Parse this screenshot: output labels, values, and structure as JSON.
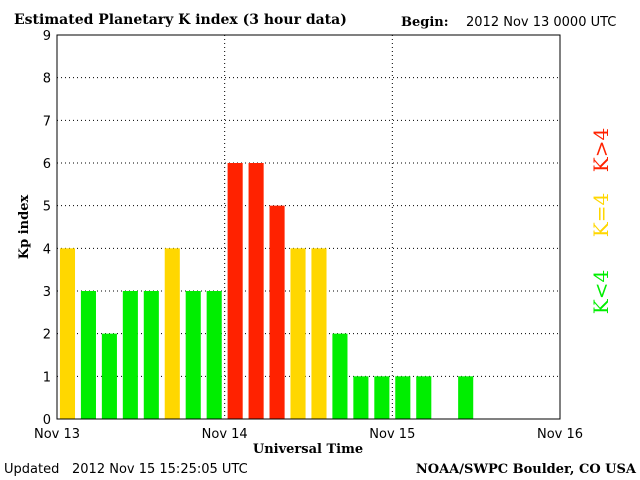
{
  "header": {
    "title": "Estimated Planetary K index (3 hour data)",
    "begin_label": "Begin:",
    "begin_value": "2012 Nov 13 0000 UTC"
  },
  "footer": {
    "updated_label": "Updated",
    "updated_value": "2012 Nov 15 15:25:05 UTC",
    "source": "NOAA/SWPC Boulder, CO USA"
  },
  "legend": [
    {
      "label": "K<4",
      "color": "#00ee00"
    },
    {
      "label": "K=4",
      "color": "#ffd700"
    },
    {
      "label": "K>4",
      "color": "#ff2200"
    }
  ],
  "colors": {
    "quiet": "#00ee00",
    "active": "#ffd700",
    "storm": "#ff2200"
  },
  "chart_data": {
    "type": "bar",
    "xlabel": "Universal Time",
    "ylabel": "Kp index",
    "ylim": [
      0,
      9
    ],
    "yticks": [
      0,
      1,
      2,
      3,
      4,
      5,
      6,
      7,
      8,
      9
    ],
    "xticks": [
      "Nov 13",
      "Nov 14",
      "Nov 15",
      "Nov 16"
    ],
    "grid": true,
    "categories": [
      "Nov 13 00-03",
      "Nov 13 03-06",
      "Nov 13 06-09",
      "Nov 13 09-12",
      "Nov 13 12-15",
      "Nov 13 15-18",
      "Nov 13 18-21",
      "Nov 13 21-24",
      "Nov 14 00-03",
      "Nov 14 03-06",
      "Nov 14 06-09",
      "Nov 14 09-12",
      "Nov 14 12-15",
      "Nov 14 15-18",
      "Nov 14 18-21",
      "Nov 14 21-24",
      "Nov 15 00-03",
      "Nov 15 03-06",
      "Nov 15 06-09",
      "Nov 15 09-12",
      "Nov 15 12-15",
      "Nov 15 15-18",
      "Nov 15 18-21",
      "Nov 15 21-24"
    ],
    "values": [
      4,
      3,
      2,
      3,
      3,
      4,
      3,
      3,
      6,
      6,
      5,
      4,
      4,
      2,
      1,
      1,
      1,
      1,
      null,
      1,
      null,
      null,
      null,
      null
    ]
  }
}
